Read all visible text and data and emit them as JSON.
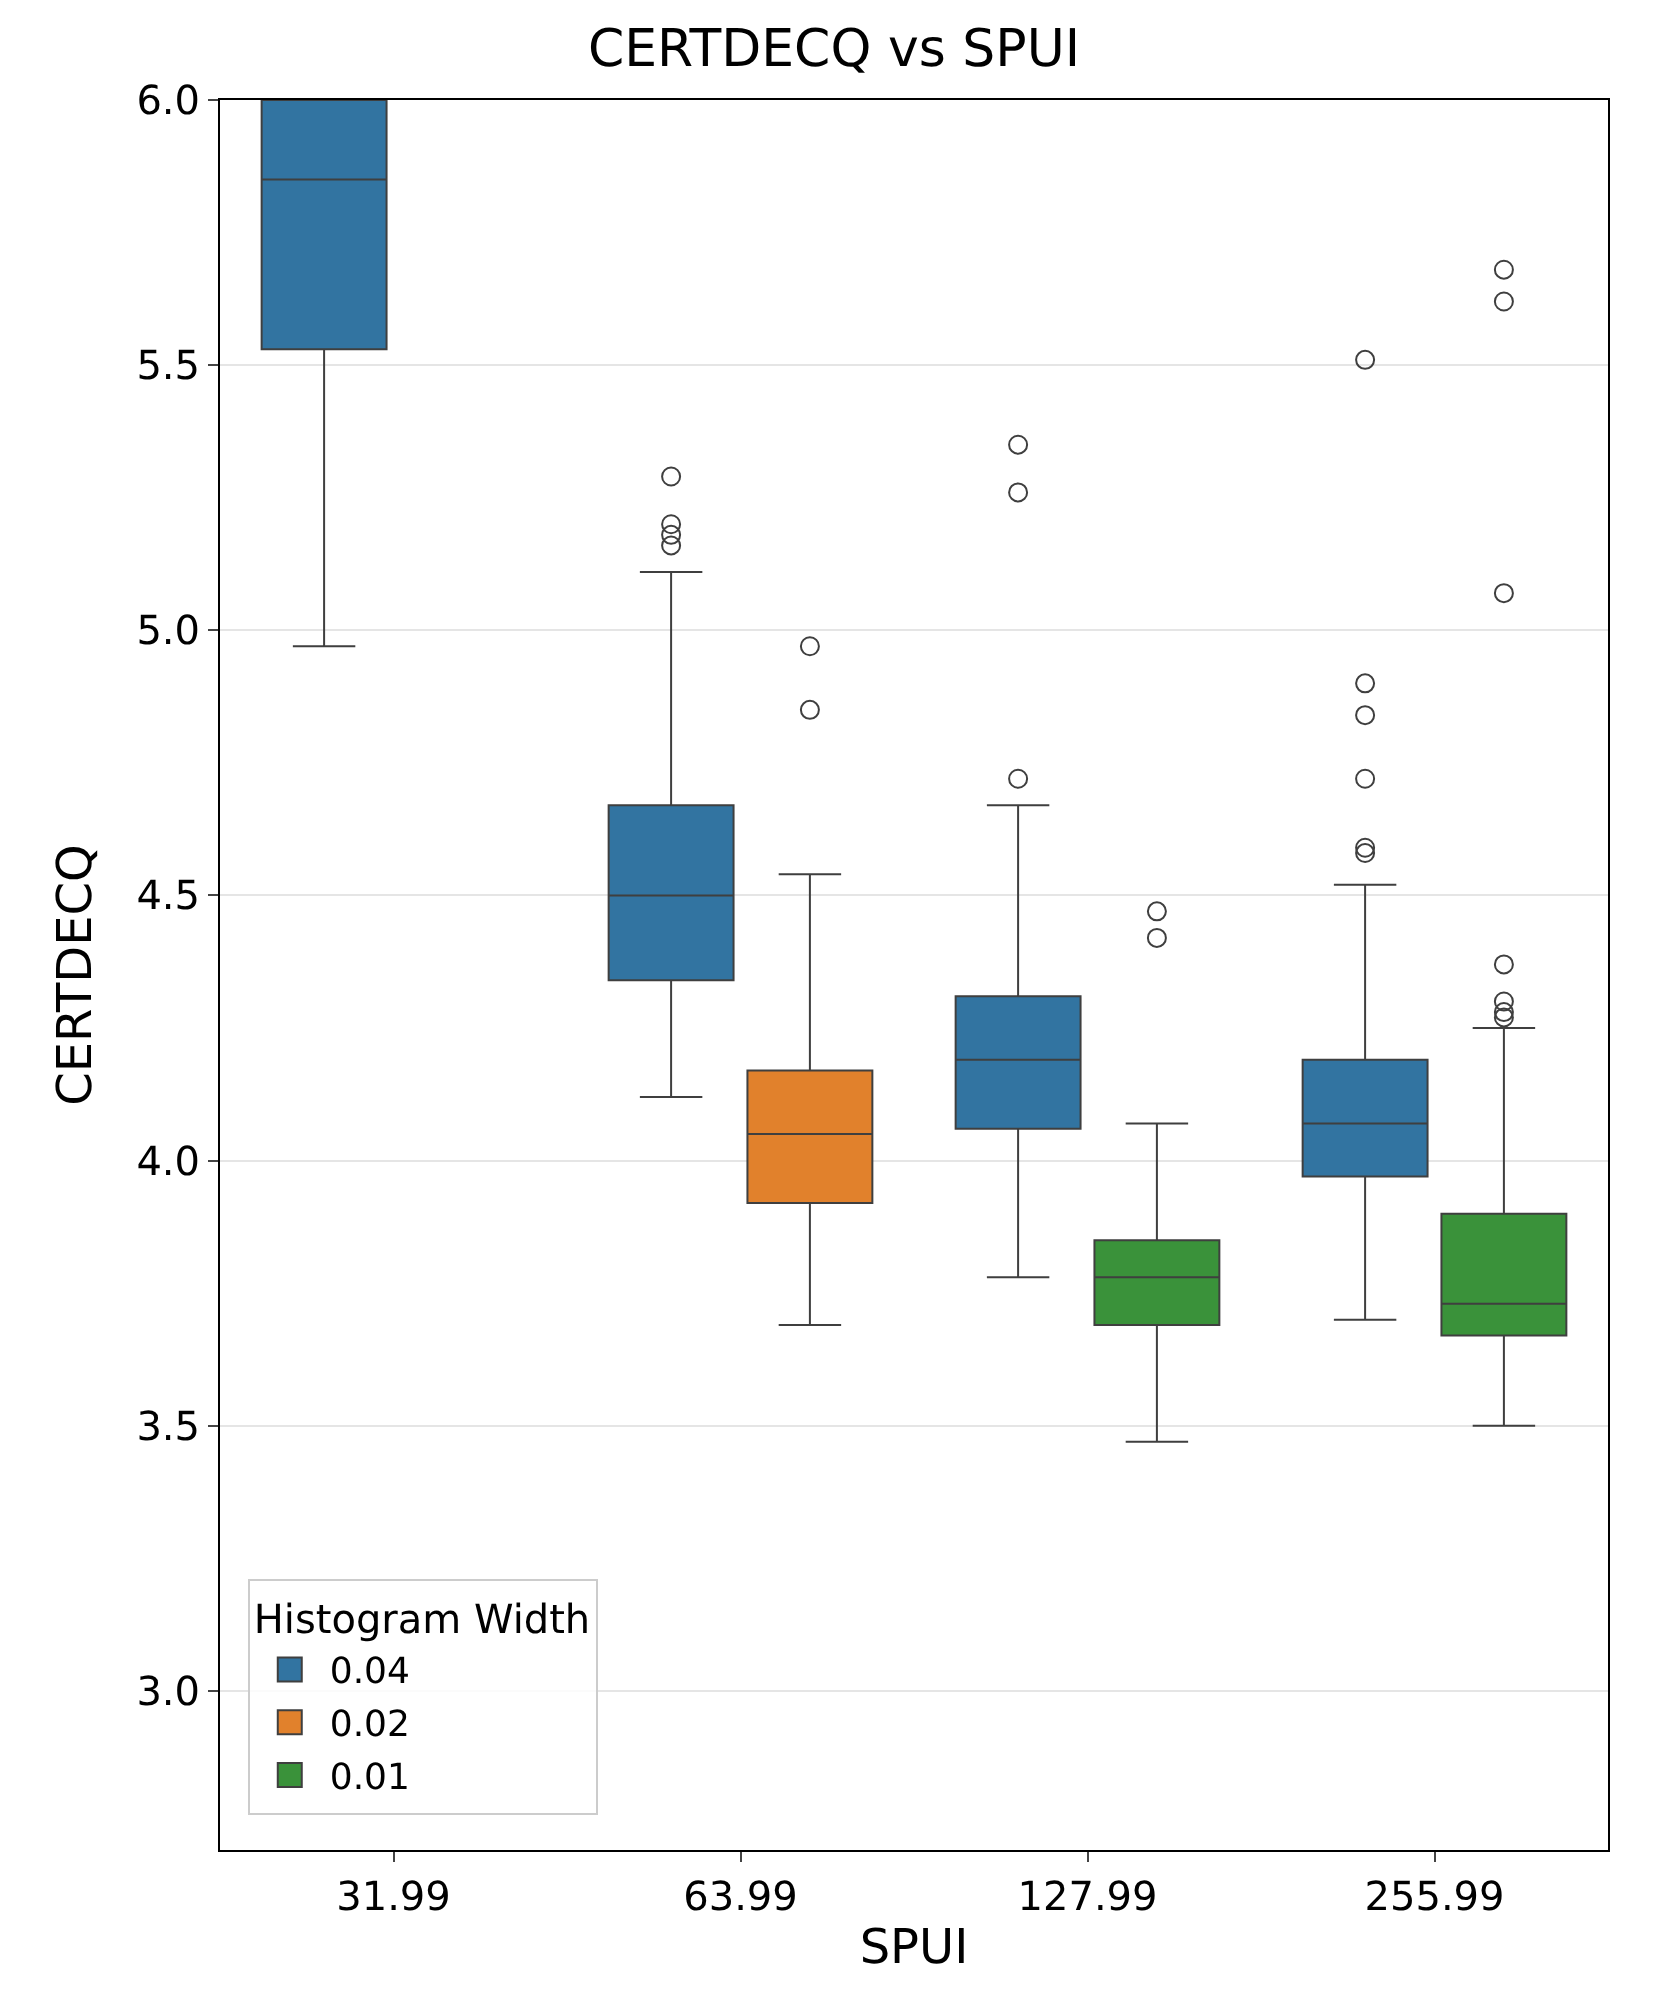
{
  "chart_data": {
    "type": "box",
    "title": "CERTDECQ vs SPUI",
    "xlabel": "SPUI",
    "ylabel": "CERTDECQ",
    "legend_title": "Histogram Width",
    "categories": [
      "31.99",
      "63.99",
      "127.99",
      "255.99"
    ],
    "series": [
      {
        "name": "0.04",
        "color": "#3274a1",
        "boxes": [
          {
            "low": 4.97,
            "q1": 5.53,
            "median": 5.85,
            "q3": 6.0,
            "high": 6.0
          },
          {
            "low": 4.12,
            "q1": 4.34,
            "median": 4.5,
            "q3": 4.67,
            "high": 5.11,
            "outliers": [
              5.29,
              5.2,
              5.18,
              5.16
            ]
          },
          {
            "low": 3.78,
            "q1": 4.06,
            "median": 4.19,
            "q3": 4.31,
            "high": 4.67,
            "outliers": [
              5.35,
              5.26,
              4.72
            ]
          },
          {
            "low": 3.7,
            "q1": 3.97,
            "median": 4.07,
            "q3": 4.19,
            "high": 4.52,
            "outliers": [
              5.51,
              4.9,
              4.84,
              4.72,
              4.59,
              4.58
            ]
          }
        ]
      },
      {
        "name": "0.02",
        "color": "#e1812c",
        "boxes": [
          null,
          {
            "low": 3.69,
            "q1": 3.92,
            "median": 4.05,
            "q3": 4.17,
            "high": 4.54,
            "outliers": [
              4.97,
              4.85
            ]
          },
          null,
          null
        ]
      },
      {
        "name": "0.01",
        "color": "#3a923a",
        "boxes": [
          null,
          null,
          {
            "low": 3.47,
            "q1": 3.69,
            "median": 3.78,
            "q3": 3.85,
            "high": 4.07,
            "outliers": [
              4.47,
              4.42
            ]
          },
          {
            "low": 3.5,
            "q1": 3.67,
            "median": 3.73,
            "q3": 3.9,
            "high": 4.25,
            "outliers": [
              5.68,
              5.62,
              5.07,
              4.37,
              4.3,
              4.28,
              4.27
            ]
          }
        ]
      }
    ],
    "ylim": [
      2.7,
      6.0
    ],
    "yticks": [
      {
        "value": 3,
        "label": "3.0"
      },
      3.5,
      {
        "value": 4,
        "label": "4.0"
      },
      4.5,
      {
        "value": 5,
        "label": "5.0"
      },
      5.5,
      {
        "value": 6,
        "label": "6.0"
      }
    ],
    "grid": "y",
    "legend": "bottom left"
  }
}
